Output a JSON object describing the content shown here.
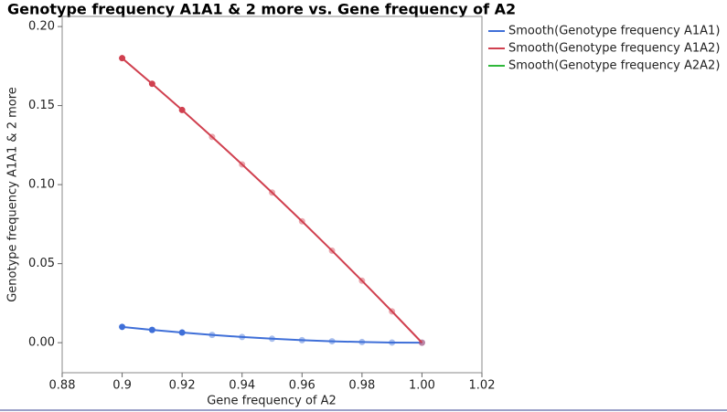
{
  "chart_data": {
    "type": "line",
    "title": "Genotype frequency A1A1 & 2 more vs. Gene frequency of A2",
    "x_label": "Gene frequency of A2",
    "y_label": "Genotype frequency A1A1 & 2 more",
    "x": [
      0.9,
      0.91,
      0.92,
      0.93,
      0.94,
      0.95,
      0.96,
      0.97,
      0.98,
      0.99,
      1.0
    ],
    "series": [
      {
        "name": "Smooth(Genotype frequency A1A1)",
        "color": "#3f6fd8",
        "values": [
          0.01,
          0.0081,
          0.0064,
          0.0049,
          0.0036,
          0.0025,
          0.0016,
          0.0009,
          0.0004,
          0.0001,
          0
        ]
      },
      {
        "name": "Smooth(Genotype frequency A1A2)",
        "color": "#d0404f",
        "values": [
          0.18,
          0.1638,
          0.1472,
          0.1302,
          0.1128,
          0.095,
          0.0768,
          0.0582,
          0.0392,
          0.0198,
          0
        ]
      },
      {
        "name": "Smooth(Genotype frequency A2A2)",
        "color": "#2fb83a",
        "values": [
          null,
          null,
          null,
          null,
          null,
          null,
          null,
          null,
          null,
          null,
          null
        ]
      }
    ],
    "xlim": [
      0.88,
      1.02
    ],
    "xticks": [
      0.88,
      0.9,
      0.92,
      0.94,
      0.96,
      0.98,
      {
        "value": 1,
        "label": "1.00"
      },
      1.02
    ],
    "ylim": [
      -0.019,
      0.2064
    ],
    "yticks": [
      {
        "value": 0,
        "label": "0.00"
      },
      0.05,
      {
        "value": 0.1,
        "label": "0.10"
      },
      0.15,
      {
        "value": 0.2,
        "label": "0.20"
      }
    ],
    "legend": "right"
  }
}
